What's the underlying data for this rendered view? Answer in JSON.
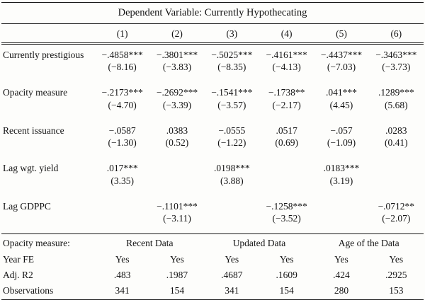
{
  "table": {
    "title": "Dependent Variable: Currently Hypothecating",
    "column_headers": [
      "(1)",
      "(2)",
      "(3)",
      "(4)",
      "(5)",
      "(6)"
    ],
    "rows": [
      {
        "label": "Currently prestigious",
        "coefs": [
          "−.4858***",
          "−.3801***",
          "−.5025***",
          "−.4161***",
          "−.4437***",
          "−.3463***"
        ],
        "tstats": [
          "(−8.16)",
          "(−3.83)",
          "(−8.35)",
          "(−4.13)",
          "(−7.03)",
          "(−3.73)"
        ]
      },
      {
        "label": "Opacity measure",
        "coefs": [
          "−.2173***",
          "−.2692***",
          "−.1541***",
          "−.1738**",
          ".041***",
          ".1289***"
        ],
        "tstats": [
          "(−4.70)",
          "(−3.39)",
          "(−3.57)",
          "(−2.17)",
          "(4.45)",
          "(5.68)"
        ]
      },
      {
        "label": "Recent issuance",
        "coefs": [
          "−.0587",
          ".0383",
          "−.0555",
          ".0517",
          "−.057",
          ".0283"
        ],
        "tstats": [
          "(−1.30)",
          "(0.52)",
          "(−1.22)",
          "(0.69)",
          "(−1.09)",
          "(0.41)"
        ]
      },
      {
        "label": "Lag wgt. yield",
        "coefs": [
          ".017***",
          "",
          ".0198***",
          "",
          ".0183***",
          ""
        ],
        "tstats": [
          "(3.35)",
          "",
          "(3.88)",
          "",
          "(3.19)",
          ""
        ]
      },
      {
        "label": "Lag GDPPC",
        "coefs": [
          "",
          "−.1101***",
          "",
          "−.1258***",
          "",
          "−.0712**"
        ],
        "tstats": [
          "",
          "(−3.11)",
          "",
          "(−3.52)",
          "",
          "(−2.07)"
        ]
      }
    ],
    "bottom": {
      "opacity_label": "Opacity measure:",
      "opacity_groups": [
        "Recent Data",
        "Updated Data",
        "Age of the Data"
      ],
      "stat_rows": [
        {
          "label": "Year FE",
          "values": [
            "Yes",
            "Yes",
            "Yes",
            "Yes",
            "Yes",
            "Yes"
          ]
        },
        {
          "label": "Adj. R2",
          "values": [
            ".483",
            ".1987",
            ".4687",
            ".1609",
            ".424",
            ".2925"
          ]
        },
        {
          "label": "Observations",
          "values": [
            "341",
            "154",
            "341",
            "154",
            "280",
            "153"
          ]
        }
      ]
    }
  }
}
